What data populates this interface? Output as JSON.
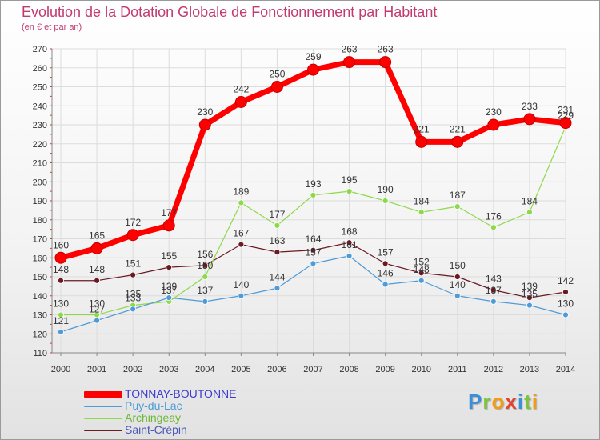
{
  "chart_data": {
    "type": "line",
    "title": "Evolution de la Dotation Globale de Fonctionnement par Habitant",
    "subtitle": "(en € et par an)",
    "xlabel": "",
    "ylabel": "",
    "ylim": [
      110,
      270
    ],
    "ytick_step": 10,
    "grid": true,
    "categories": [
      "2000",
      "2001",
      "2002",
      "2003",
      "2004",
      "2005",
      "2006",
      "2007",
      "2008",
      "2009",
      "2010",
      "2011",
      "2012",
      "2013",
      "2014"
    ],
    "series": [
      {
        "name": "TONNAY-BOUTONNE",
        "color": "#ff0000",
        "values": [
          160,
          165,
          172,
          177,
          230,
          242,
          250,
          259,
          263,
          263,
          221,
          221,
          230,
          233,
          231
        ]
      },
      {
        "name": "Puy-du-Lac",
        "color": "#4f9bd8",
        "values": [
          121,
          127,
          133,
          139,
          137,
          140,
          144,
          157,
          161,
          146,
          148,
          140,
          137,
          135,
          130
        ]
      },
      {
        "name": "Archingeay",
        "color": "#8ed94a",
        "values": [
          130,
          130,
          135,
          137,
          150,
          189,
          177,
          193,
          195,
          190,
          184,
          187,
          176,
          184,
          229
        ]
      },
      {
        "name": "Saint-Crépin",
        "color": "#6b1a24",
        "values": [
          148,
          148,
          151,
          155,
          156,
          167,
          163,
          164,
          168,
          157,
          152,
          150,
          143,
          139,
          142
        ]
      }
    ],
    "legend_position": "bottom-left"
  },
  "brand": {
    "letters": [
      {
        "char": "P",
        "color": "#3a8fd6"
      },
      {
        "char": "r",
        "color": "#7cc43a"
      },
      {
        "char": "o",
        "color": "#f39c12"
      },
      {
        "char": "x",
        "color": "#e3432e"
      },
      {
        "char": "i",
        "color": "#3a8fd6"
      },
      {
        "char": "t",
        "color": "#7cc43a"
      },
      {
        "char": "i",
        "color": "#f39c12"
      }
    ]
  }
}
